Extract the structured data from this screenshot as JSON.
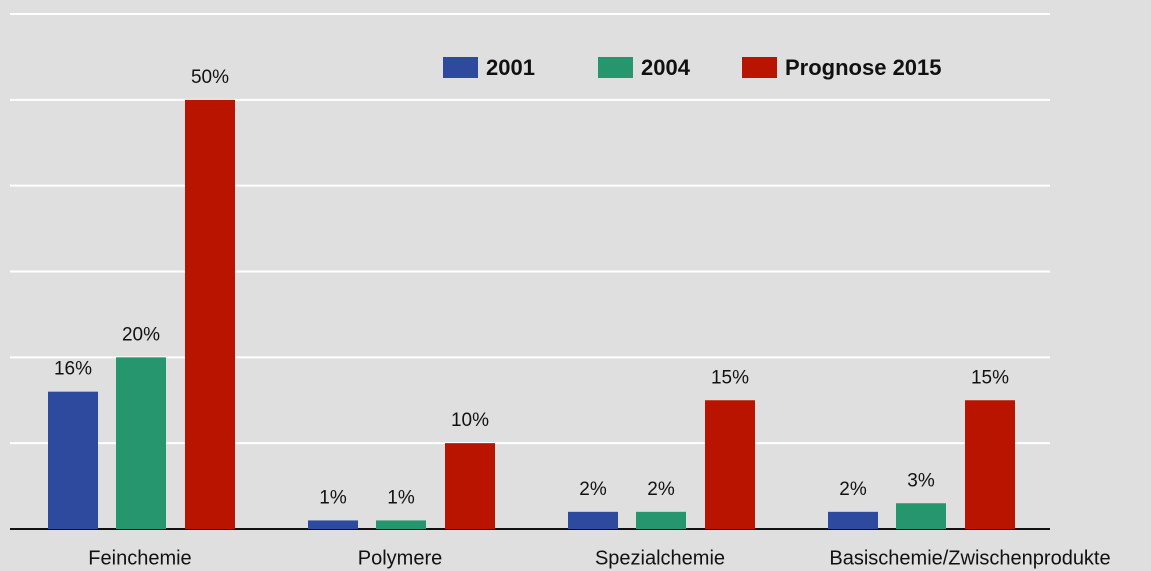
{
  "chart_data": {
    "type": "bar",
    "categories": [
      "Feinchemie",
      "Polymere",
      "Spezialchemie",
      "Basischemie/Zwischenprodukte"
    ],
    "series": [
      {
        "name": "2001",
        "color": "#2e4a9e",
        "values": [
          16,
          1,
          2,
          2
        ],
        "value_labels": [
          "16%",
          "1%",
          "2%",
          "2%"
        ]
      },
      {
        "name": "2004",
        "color": "#26966e",
        "values": [
          20,
          1,
          2,
          3
        ],
        "value_labels": [
          "20%",
          "1%",
          "2%",
          "3%"
        ]
      },
      {
        "name": "Prognose 2015",
        "color": "#b81400",
        "values": [
          50,
          10,
          15,
          15
        ],
        "value_labels": [
          "50%",
          "10%",
          "15%",
          "15%"
        ]
      }
    ],
    "ylim": [
      0,
      60
    ],
    "yticks": [
      0,
      10,
      20,
      30,
      40,
      50,
      60
    ],
    "grid": true,
    "legend": "top"
  }
}
